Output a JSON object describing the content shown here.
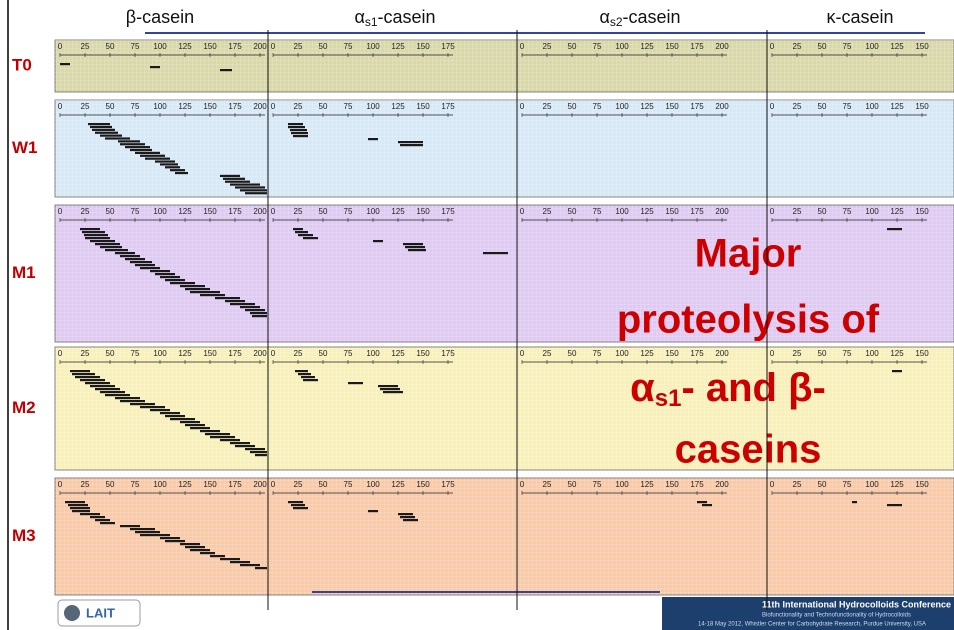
{
  "columns": [
    {
      "symbol": "β",
      "name": "-casein",
      "ticks": [
        0,
        25,
        50,
        75,
        100,
        125,
        150,
        175,
        200
      ]
    },
    {
      "symbol": "α",
      "sub": "s1",
      "name": "-casein",
      "ticks": [
        0,
        25,
        50,
        75,
        100,
        125,
        150,
        175
      ]
    },
    {
      "symbol": "α",
      "sub": "s2",
      "name": "-casein",
      "ticks": [
        0,
        25,
        50,
        75,
        100,
        125,
        150,
        175,
        200
      ]
    },
    {
      "symbol": "κ",
      "name": "-casein",
      "ticks": [
        0,
        25,
        50,
        75,
        100,
        125,
        150
      ]
    }
  ],
  "rows": [
    {
      "label": "T0",
      "color": "#d9d8a9",
      "peptides": [
        [
          [
            0,
            10
          ],
          [
            90,
            100
          ],
          [
            160,
            172
          ]
        ],
        [],
        [],
        []
      ]
    },
    {
      "label": "W1",
      "color": "#d7e8f7",
      "peptides": [
        [
          [
            28,
            50
          ],
          [
            30,
            52
          ],
          [
            32,
            55
          ],
          [
            35,
            58
          ],
          [
            40,
            62
          ],
          [
            45,
            70
          ],
          [
            58,
            80
          ],
          [
            60,
            85
          ],
          [
            65,
            90
          ],
          [
            70,
            92
          ],
          [
            75,
            100
          ],
          [
            80,
            105
          ],
          [
            85,
            110
          ],
          [
            95,
            115
          ],
          [
            100,
            118
          ],
          [
            105,
            120
          ],
          [
            110,
            125
          ],
          [
            115,
            128
          ],
          [
            160,
            180
          ],
          [
            163,
            185
          ],
          [
            165,
            190
          ],
          [
            170,
            200
          ],
          [
            175,
            205
          ],
          [
            180,
            209
          ],
          [
            185,
            209
          ]
        ],
        [
          [
            15,
            30
          ],
          [
            15,
            32
          ],
          [
            17,
            34
          ],
          [
            18,
            35
          ],
          [
            20,
            35
          ],
          [
            95,
            105
          ],
          [
            125,
            150
          ],
          [
            127,
            150
          ]
        ],
        [],
        []
      ]
    },
    {
      "label": "M1",
      "color": "#dfcaf1",
      "peptides": [
        [
          [
            20,
            40
          ],
          [
            22,
            45
          ],
          [
            24,
            48
          ],
          [
            25,
            50
          ],
          [
            30,
            55
          ],
          [
            35,
            60
          ],
          [
            40,
            62
          ],
          [
            45,
            68
          ],
          [
            55,
            75
          ],
          [
            60,
            80
          ],
          [
            65,
            85
          ],
          [
            70,
            92
          ],
          [
            75,
            95
          ],
          [
            80,
            100
          ],
          [
            90,
            110
          ],
          [
            95,
            115
          ],
          [
            100,
            120
          ],
          [
            105,
            125
          ],
          [
            110,
            135
          ],
          [
            120,
            145
          ],
          [
            125,
            150
          ],
          [
            130,
            160
          ],
          [
            140,
            165
          ],
          [
            155,
            180
          ],
          [
            165,
            185
          ],
          [
            170,
            195
          ],
          [
            180,
            200
          ],
          [
            185,
            205
          ],
          [
            190,
            209
          ],
          [
            192,
            209
          ]
        ],
        [
          [
            20,
            30
          ],
          [
            22,
            35
          ],
          [
            25,
            40
          ],
          [
            30,
            45
          ],
          [
            100,
            110
          ],
          [
            130,
            150
          ],
          [
            132,
            152
          ],
          [
            135,
            153
          ],
          [
            210,
            235
          ]
        ],
        [],
        [
          [
            115,
            130
          ]
        ]
      ]
    },
    {
      "label": "M2",
      "color": "#f7f0bb",
      "peptides": [
        [
          [
            10,
            30
          ],
          [
            12,
            35
          ],
          [
            15,
            40
          ],
          [
            20,
            45
          ],
          [
            25,
            50
          ],
          [
            30,
            55
          ],
          [
            35,
            60
          ],
          [
            40,
            65
          ],
          [
            45,
            70
          ],
          [
            55,
            80
          ],
          [
            60,
            85
          ],
          [
            70,
            95
          ],
          [
            80,
            105
          ],
          [
            90,
            110
          ],
          [
            100,
            120
          ],
          [
            105,
            125
          ],
          [
            110,
            135
          ],
          [
            120,
            140
          ],
          [
            125,
            145
          ],
          [
            130,
            150
          ],
          [
            140,
            160
          ],
          [
            145,
            170
          ],
          [
            150,
            175
          ],
          [
            160,
            180
          ],
          [
            170,
            190
          ],
          [
            175,
            195
          ],
          [
            185,
            205
          ],
          [
            190,
            209
          ],
          [
            195,
            209
          ]
        ],
        [
          [
            22,
            35
          ],
          [
            25,
            38
          ],
          [
            28,
            42
          ],
          [
            30,
            45
          ],
          [
            75,
            90
          ],
          [
            105,
            125
          ],
          [
            107,
            127
          ],
          [
            110,
            130
          ]
        ],
        [],
        [
          [
            120,
            130
          ]
        ]
      ]
    },
    {
      "label": "M3",
      "color": "#f8caa9",
      "peptides": [
        [
          [
            5,
            25
          ],
          [
            8,
            28
          ],
          [
            10,
            30
          ],
          [
            12,
            30
          ],
          [
            20,
            40
          ],
          [
            30,
            45
          ],
          [
            35,
            50
          ],
          [
            40,
            55
          ],
          [
            60,
            80
          ],
          [
            70,
            95
          ],
          [
            75,
            100
          ],
          [
            80,
            110
          ],
          [
            100,
            120
          ],
          [
            105,
            125
          ],
          [
            120,
            140
          ],
          [
            125,
            145
          ],
          [
            130,
            150
          ],
          [
            140,
            155
          ],
          [
            150,
            165
          ],
          [
            160,
            180
          ],
          [
            170,
            190
          ],
          [
            180,
            200
          ],
          [
            195,
            209
          ]
        ],
        [
          [
            15,
            30
          ],
          [
            18,
            32
          ],
          [
            20,
            35
          ],
          [
            95,
            105
          ],
          [
            125,
            140
          ],
          [
            127,
            142
          ],
          [
            130,
            145
          ]
        ],
        [
          [
            175,
            185
          ],
          [
            180,
            190
          ]
        ],
        [
          [
            80,
            85
          ],
          [
            115,
            130
          ]
        ]
      ]
    }
  ],
  "callout": {
    "line1": "Major",
    "line2": "proteolysis of",
    "alpha": "α",
    "sub": "s1",
    "rest": "- and β-",
    "line4": "caseins"
  },
  "footer": {
    "logo": "LAIT",
    "conference": "11th International Hydrocolloids Conference",
    "subtitle": "Biofunctionality and Technofunctionality of Hydrocolloids",
    "dates": "14-18 May 2012, Whistler Center for Carbohydrate Research, Purdue University, USA"
  }
}
